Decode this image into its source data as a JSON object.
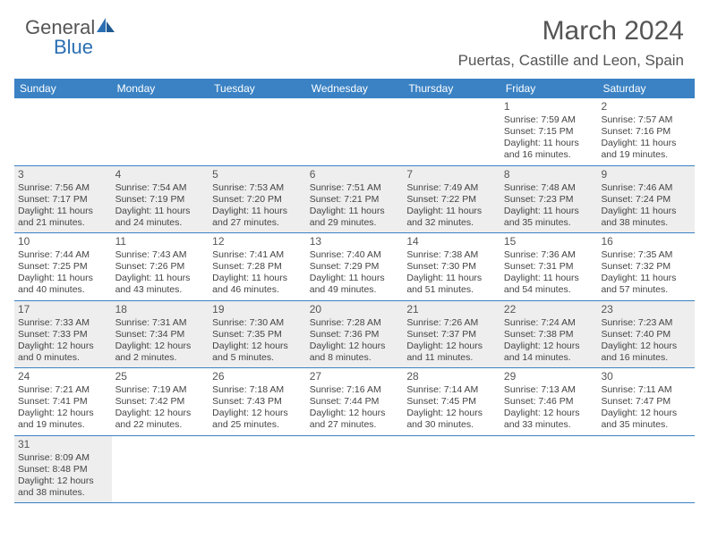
{
  "brand": {
    "general": "General",
    "blue": "Blue"
  },
  "title": {
    "month": "March 2024",
    "location": "Puertas, Castille and Leon, Spain"
  },
  "colors": {
    "header_bg": "#3a82c4",
    "text": "#444444",
    "shade": "#eeeeee"
  },
  "dow": [
    "Sunday",
    "Monday",
    "Tuesday",
    "Wednesday",
    "Thursday",
    "Friday",
    "Saturday"
  ],
  "weeks": [
    [
      {
        "n": "",
        "shaded": false
      },
      {
        "n": "",
        "shaded": false
      },
      {
        "n": "",
        "shaded": false
      },
      {
        "n": "",
        "shaded": false
      },
      {
        "n": "",
        "shaded": false
      },
      {
        "n": "1",
        "sr": "Sunrise: 7:59 AM",
        "ss": "Sunset: 7:15 PM",
        "dl": "Daylight: 11 hours and 16 minutes.",
        "shaded": false
      },
      {
        "n": "2",
        "sr": "Sunrise: 7:57 AM",
        "ss": "Sunset: 7:16 PM",
        "dl": "Daylight: 11 hours and 19 minutes.",
        "shaded": false
      }
    ],
    [
      {
        "n": "3",
        "sr": "Sunrise: 7:56 AM",
        "ss": "Sunset: 7:17 PM",
        "dl": "Daylight: 11 hours and 21 minutes.",
        "shaded": true
      },
      {
        "n": "4",
        "sr": "Sunrise: 7:54 AM",
        "ss": "Sunset: 7:19 PM",
        "dl": "Daylight: 11 hours and 24 minutes.",
        "shaded": true
      },
      {
        "n": "5",
        "sr": "Sunrise: 7:53 AM",
        "ss": "Sunset: 7:20 PM",
        "dl": "Daylight: 11 hours and 27 minutes.",
        "shaded": true
      },
      {
        "n": "6",
        "sr": "Sunrise: 7:51 AM",
        "ss": "Sunset: 7:21 PM",
        "dl": "Daylight: 11 hours and 29 minutes.",
        "shaded": true
      },
      {
        "n": "7",
        "sr": "Sunrise: 7:49 AM",
        "ss": "Sunset: 7:22 PM",
        "dl": "Daylight: 11 hours and 32 minutes.",
        "shaded": true
      },
      {
        "n": "8",
        "sr": "Sunrise: 7:48 AM",
        "ss": "Sunset: 7:23 PM",
        "dl": "Daylight: 11 hours and 35 minutes.",
        "shaded": true
      },
      {
        "n": "9",
        "sr": "Sunrise: 7:46 AM",
        "ss": "Sunset: 7:24 PM",
        "dl": "Daylight: 11 hours and 38 minutes.",
        "shaded": true
      }
    ],
    [
      {
        "n": "10",
        "sr": "Sunrise: 7:44 AM",
        "ss": "Sunset: 7:25 PM",
        "dl": "Daylight: 11 hours and 40 minutes.",
        "shaded": false
      },
      {
        "n": "11",
        "sr": "Sunrise: 7:43 AM",
        "ss": "Sunset: 7:26 PM",
        "dl": "Daylight: 11 hours and 43 minutes.",
        "shaded": false
      },
      {
        "n": "12",
        "sr": "Sunrise: 7:41 AM",
        "ss": "Sunset: 7:28 PM",
        "dl": "Daylight: 11 hours and 46 minutes.",
        "shaded": false
      },
      {
        "n": "13",
        "sr": "Sunrise: 7:40 AM",
        "ss": "Sunset: 7:29 PM",
        "dl": "Daylight: 11 hours and 49 minutes.",
        "shaded": false
      },
      {
        "n": "14",
        "sr": "Sunrise: 7:38 AM",
        "ss": "Sunset: 7:30 PM",
        "dl": "Daylight: 11 hours and 51 minutes.",
        "shaded": false
      },
      {
        "n": "15",
        "sr": "Sunrise: 7:36 AM",
        "ss": "Sunset: 7:31 PM",
        "dl": "Daylight: 11 hours and 54 minutes.",
        "shaded": false
      },
      {
        "n": "16",
        "sr": "Sunrise: 7:35 AM",
        "ss": "Sunset: 7:32 PM",
        "dl": "Daylight: 11 hours and 57 minutes.",
        "shaded": false
      }
    ],
    [
      {
        "n": "17",
        "sr": "Sunrise: 7:33 AM",
        "ss": "Sunset: 7:33 PM",
        "dl": "Daylight: 12 hours and 0 minutes.",
        "shaded": true
      },
      {
        "n": "18",
        "sr": "Sunrise: 7:31 AM",
        "ss": "Sunset: 7:34 PM",
        "dl": "Daylight: 12 hours and 2 minutes.",
        "shaded": true
      },
      {
        "n": "19",
        "sr": "Sunrise: 7:30 AM",
        "ss": "Sunset: 7:35 PM",
        "dl": "Daylight: 12 hours and 5 minutes.",
        "shaded": true
      },
      {
        "n": "20",
        "sr": "Sunrise: 7:28 AM",
        "ss": "Sunset: 7:36 PM",
        "dl": "Daylight: 12 hours and 8 minutes.",
        "shaded": true
      },
      {
        "n": "21",
        "sr": "Sunrise: 7:26 AM",
        "ss": "Sunset: 7:37 PM",
        "dl": "Daylight: 12 hours and 11 minutes.",
        "shaded": true
      },
      {
        "n": "22",
        "sr": "Sunrise: 7:24 AM",
        "ss": "Sunset: 7:38 PM",
        "dl": "Daylight: 12 hours and 14 minutes.",
        "shaded": true
      },
      {
        "n": "23",
        "sr": "Sunrise: 7:23 AM",
        "ss": "Sunset: 7:40 PM",
        "dl": "Daylight: 12 hours and 16 minutes.",
        "shaded": true
      }
    ],
    [
      {
        "n": "24",
        "sr": "Sunrise: 7:21 AM",
        "ss": "Sunset: 7:41 PM",
        "dl": "Daylight: 12 hours and 19 minutes.",
        "shaded": false
      },
      {
        "n": "25",
        "sr": "Sunrise: 7:19 AM",
        "ss": "Sunset: 7:42 PM",
        "dl": "Daylight: 12 hours and 22 minutes.",
        "shaded": false
      },
      {
        "n": "26",
        "sr": "Sunrise: 7:18 AM",
        "ss": "Sunset: 7:43 PM",
        "dl": "Daylight: 12 hours and 25 minutes.",
        "shaded": false
      },
      {
        "n": "27",
        "sr": "Sunrise: 7:16 AM",
        "ss": "Sunset: 7:44 PM",
        "dl": "Daylight: 12 hours and 27 minutes.",
        "shaded": false
      },
      {
        "n": "28",
        "sr": "Sunrise: 7:14 AM",
        "ss": "Sunset: 7:45 PM",
        "dl": "Daylight: 12 hours and 30 minutes.",
        "shaded": false
      },
      {
        "n": "29",
        "sr": "Sunrise: 7:13 AM",
        "ss": "Sunset: 7:46 PM",
        "dl": "Daylight: 12 hours and 33 minutes.",
        "shaded": false
      },
      {
        "n": "30",
        "sr": "Sunrise: 7:11 AM",
        "ss": "Sunset: 7:47 PM",
        "dl": "Daylight: 12 hours and 35 minutes.",
        "shaded": false
      }
    ],
    [
      {
        "n": "31",
        "sr": "Sunrise: 8:09 AM",
        "ss": "Sunset: 8:48 PM",
        "dl": "Daylight: 12 hours and 38 minutes.",
        "shaded": true
      },
      {
        "n": "",
        "shaded": false
      },
      {
        "n": "",
        "shaded": false
      },
      {
        "n": "",
        "shaded": false
      },
      {
        "n": "",
        "shaded": false
      },
      {
        "n": "",
        "shaded": false
      },
      {
        "n": "",
        "shaded": false
      }
    ]
  ]
}
